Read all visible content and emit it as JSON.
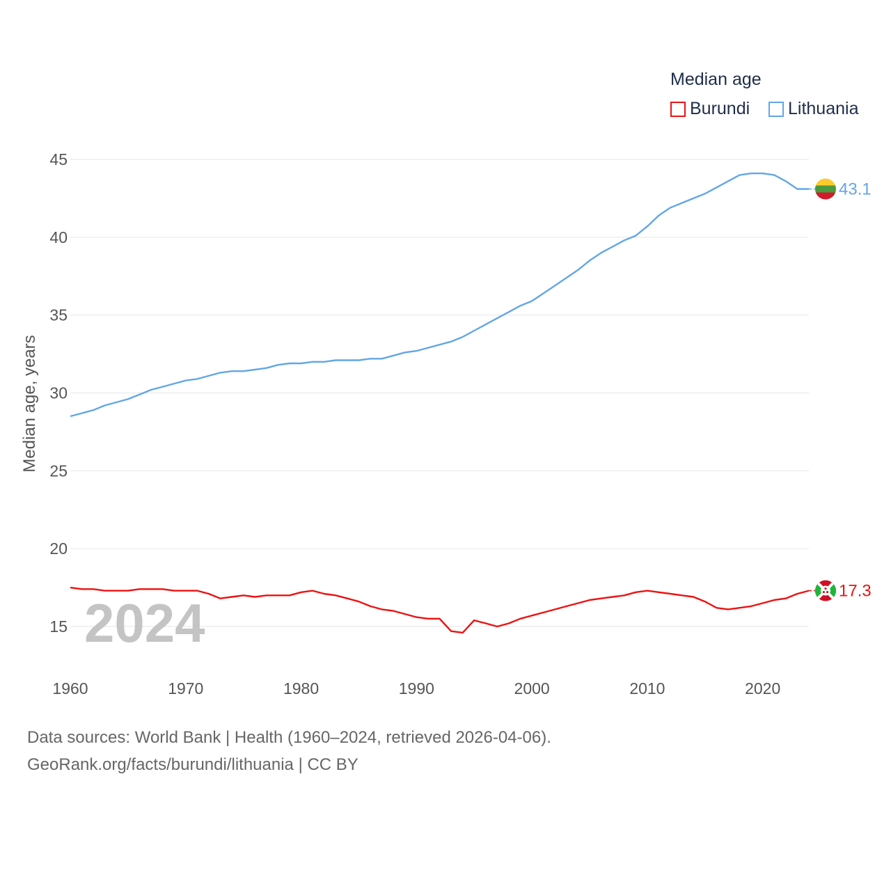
{
  "legend": {
    "title": "Median age",
    "items": [
      {
        "name": "Burundi",
        "color": "#ee1111"
      },
      {
        "name": "Lithuania",
        "color": "#62a6e6"
      }
    ]
  },
  "source": {
    "line1": "Data sources: World Bank | Health (1960–2024, retrieved 2026-04-06).",
    "line2": "GeoRank.org/facts/burundi/lithuania | CC BY"
  },
  "chart_data": {
    "type": "line",
    "title": "Median age",
    "xlabel": "",
    "ylabel": "Median age, years",
    "xlim": [
      1960,
      2024
    ],
    "ylim": [
      12.5,
      46
    ],
    "xticks": [
      1960,
      1970,
      1980,
      1990,
      2000,
      2010,
      2020
    ],
    "yticks": [
      15,
      20,
      25,
      30,
      35,
      40,
      45
    ],
    "year_label": "2024",
    "grid": true,
    "legend_position": "top-right",
    "x": [
      1960,
      1961,
      1962,
      1963,
      1964,
      1965,
      1966,
      1967,
      1968,
      1969,
      1970,
      1971,
      1972,
      1973,
      1974,
      1975,
      1976,
      1977,
      1978,
      1979,
      1980,
      1981,
      1982,
      1983,
      1984,
      1985,
      1986,
      1987,
      1988,
      1989,
      1990,
      1991,
      1992,
      1993,
      1994,
      1995,
      1996,
      1997,
      1998,
      1999,
      2000,
      2001,
      2002,
      2003,
      2004,
      2005,
      2006,
      2007,
      2008,
      2009,
      2010,
      2011,
      2012,
      2013,
      2014,
      2015,
      2016,
      2017,
      2018,
      2019,
      2020,
      2021,
      2022,
      2023,
      2024
    ],
    "series": [
      {
        "name": "Lithuania",
        "color": "#62a6e6",
        "end_label": "43.1",
        "values": [
          28.5,
          28.7,
          28.9,
          29.2,
          29.4,
          29.6,
          29.9,
          30.2,
          30.4,
          30.6,
          30.8,
          30.9,
          31.1,
          31.3,
          31.4,
          31.4,
          31.5,
          31.6,
          31.8,
          31.9,
          31.9,
          32.0,
          32.0,
          32.1,
          32.1,
          32.1,
          32.2,
          32.2,
          32.4,
          32.6,
          32.7,
          32.9,
          33.1,
          33.3,
          33.6,
          34.0,
          34.4,
          34.8,
          35.2,
          35.6,
          35.9,
          36.4,
          36.9,
          37.4,
          37.9,
          38.5,
          39.0,
          39.4,
          39.8,
          40.1,
          40.7,
          41.4,
          41.9,
          42.2,
          42.5,
          42.8,
          43.2,
          43.6,
          44.0,
          44.1,
          44.1,
          44.0,
          43.6,
          43.1,
          43.1
        ]
      },
      {
        "name": "Burundi",
        "color": "#ee1111",
        "end_label": "17.3",
        "values": [
          17.5,
          17.4,
          17.4,
          17.3,
          17.3,
          17.3,
          17.4,
          17.4,
          17.4,
          17.3,
          17.3,
          17.3,
          17.1,
          16.8,
          16.9,
          17.0,
          16.9,
          17.0,
          17.0,
          17.0,
          17.2,
          17.3,
          17.1,
          17.0,
          16.8,
          16.6,
          16.3,
          16.1,
          16.0,
          15.8,
          15.6,
          15.5,
          15.5,
          14.7,
          14.6,
          15.4,
          15.2,
          15.0,
          15.2,
          15.5,
          15.7,
          15.9,
          16.1,
          16.3,
          16.5,
          16.7,
          16.8,
          16.9,
          17.0,
          17.2,
          17.3,
          17.2,
          17.1,
          17.0,
          16.9,
          16.6,
          16.2,
          16.1,
          16.2,
          16.3,
          16.5,
          16.7,
          16.8,
          17.1,
          17.3
        ]
      }
    ]
  }
}
